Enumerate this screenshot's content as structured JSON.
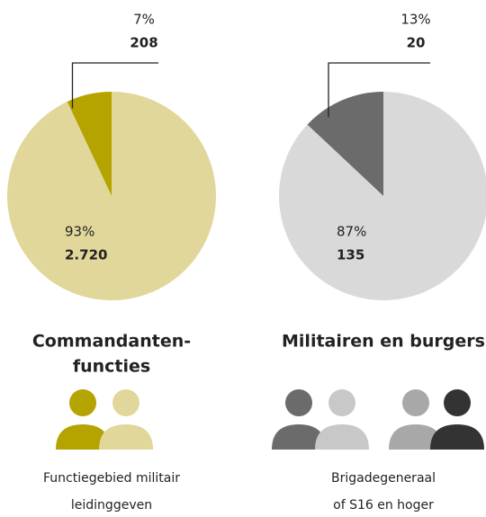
{
  "chart_data": [
    {
      "type": "pie",
      "title_lines": [
        "Commandanten-",
        "functies"
      ],
      "caption_lines": [
        "Functiegebied militair",
        "leidinggeven"
      ],
      "values": [
        7,
        93
      ],
      "value_labels": [
        "7%",
        "93%"
      ],
      "counts": [
        208,
        2720
      ],
      "count_labels": [
        "208",
        "2.720"
      ],
      "colors": [
        "#b5a300",
        "#e1d79a"
      ]
    },
    {
      "type": "pie",
      "title_lines": [
        "Militairen en burgers"
      ],
      "caption_lines": [
        "Brigadegeneraal",
        "of S16 en hoger"
      ],
      "values": [
        13,
        87
      ],
      "value_labels": [
        "13%",
        "87%"
      ],
      "counts": [
        20,
        135
      ],
      "count_labels": [
        "20",
        "135"
      ],
      "colors": [
        "#6b6b6b",
        "#d9d9d9"
      ]
    }
  ]
}
